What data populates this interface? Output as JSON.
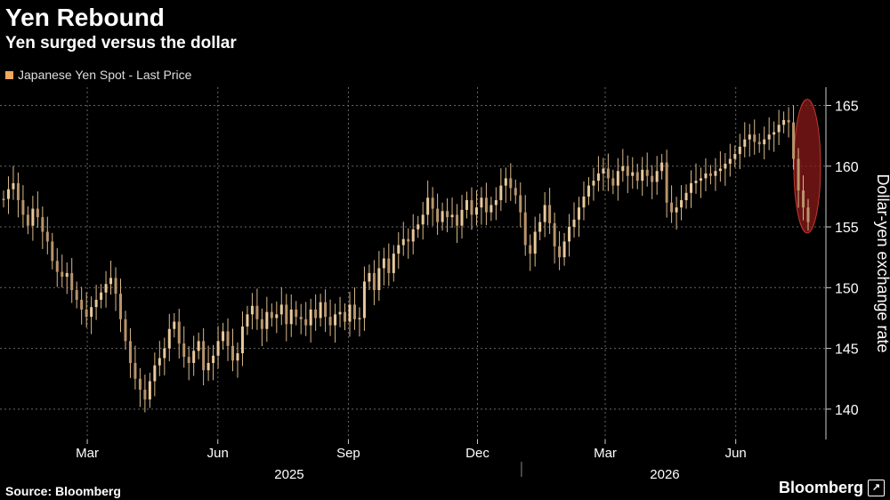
{
  "chart_data": {
    "type": "candlestick",
    "title": "Yen Rebound",
    "subtitle": "Yen surged versus the dollar",
    "legend": [
      {
        "label": "Japanese Yen Spot - Last Price",
        "color": "#f0a860"
      }
    ],
    "ylabel": "Dollar-yen exchange rate",
    "ylim": [
      137.5,
      166.5
    ],
    "y_ticks": [
      140,
      145,
      150,
      155,
      160,
      165
    ],
    "x_ticks": [
      "Mar",
      "Jun",
      "Sep",
      "Dec",
      "Mar",
      "Jun"
    ],
    "x_groups": [
      "2025",
      "2026"
    ],
    "grid": true,
    "source": "Source: Bloomberg",
    "brand": "Bloomberg",
    "highlight": {
      "shape": "ellipse",
      "color": "#8b1a1a",
      "y_range": [
        154.5,
        165.5
      ]
    },
    "series": [
      {
        "name": "Japanese Yen Spot - Last Price",
        "x_start": "2025-01-01",
        "x_end": "2026-07-22",
        "values": [
          157.3,
          158.1,
          158.6,
          157.2,
          156.0,
          155.1,
          156.5,
          155.8,
          154.6,
          153.8,
          152.2,
          151.3,
          150.9,
          151.2,
          149.8,
          149.0,
          148.2,
          147.6,
          148.4,
          149.0,
          149.6,
          150.3,
          150.8,
          149.5,
          147.4,
          145.6,
          143.8,
          142.5,
          141.6,
          140.8,
          142.3,
          143.6,
          144.2,
          145.0,
          146.6,
          147.2,
          145.4,
          144.3,
          143.8,
          144.8,
          145.6,
          143.2,
          143.8,
          144.4,
          145.6,
          146.4,
          145.2,
          144.0,
          144.6,
          146.8,
          147.8,
          148.5,
          147.4,
          146.6,
          148.0,
          147.5,
          147.8,
          148.6,
          147.0,
          148.2,
          147.6,
          147.4,
          146.9,
          148.2,
          147.5,
          148.8,
          147.6,
          146.9,
          147.8,
          148.0,
          147.2,
          148.6,
          147.4,
          147.5,
          150.5,
          151.2,
          149.8,
          151.6,
          152.4,
          151.2,
          152.8,
          153.5,
          154.0,
          153.8,
          154.8,
          155.2,
          156.0,
          157.4,
          156.5,
          155.4,
          156.3,
          155.8,
          156.0,
          155.1,
          156.4,
          157.2,
          156.0,
          156.6,
          157.4,
          156.2,
          156.8,
          157.2,
          158.4,
          159.0,
          158.2,
          157.6,
          156.2,
          153.5,
          152.8,
          154.6,
          155.4,
          156.8,
          155.3,
          153.4,
          152.5,
          153.8,
          155.0,
          155.6,
          156.6,
          157.5,
          158.4,
          158.8,
          159.4,
          159.8,
          159.0,
          158.4,
          159.6,
          160.0,
          159.2,
          159.5,
          158.8,
          159.7,
          159.2,
          158.7,
          159.6,
          160.3,
          157.0,
          156.2,
          156.6,
          157.2,
          157.8,
          158.6,
          158.8,
          159.0,
          159.4,
          159.2,
          159.6,
          159.8,
          160.2,
          160.6,
          161.0,
          161.6,
          162.2,
          162.6,
          162.0,
          161.8,
          162.2,
          162.6,
          162.8,
          163.4,
          163.8,
          163.6,
          160.6,
          158.0,
          156.6,
          155.4
        ]
      }
    ]
  }
}
